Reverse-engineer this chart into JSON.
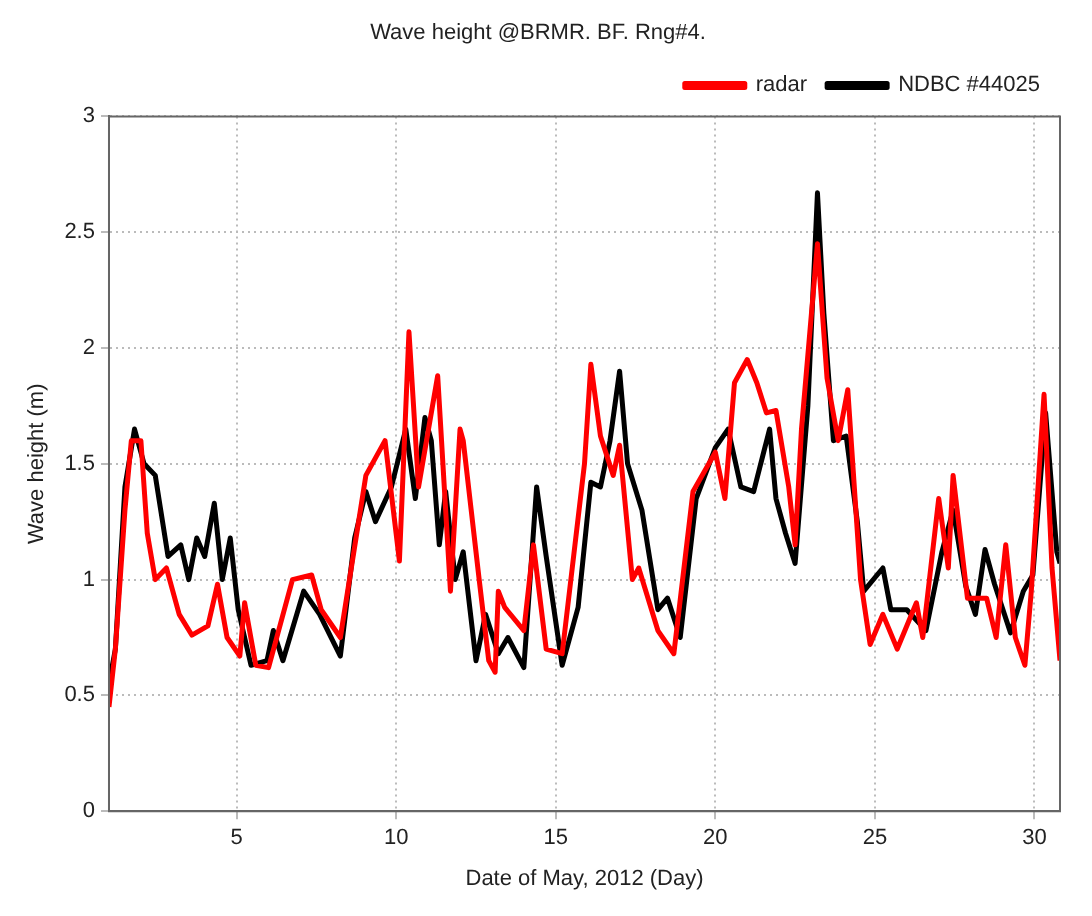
{
  "chart_data": {
    "type": "line",
    "title": "Wave height @BRMR. BF. Rng#4.",
    "xlabel": "Date of May, 2012 (Day)",
    "ylabel": "Wave height (m)",
    "xlim": [
      1,
      30.8
    ],
    "ylim": [
      0,
      3
    ],
    "xticks": [
      5,
      10,
      15,
      20,
      25,
      30
    ],
    "yticks": [
      0,
      0.5,
      1,
      1.5,
      2,
      2.5,
      3
    ],
    "grid": true,
    "legend": "top right",
    "line_style": "solid",
    "marker": "none",
    "series": [
      {
        "name": "radar",
        "color": "#ff0000",
        "x": [
          1.0,
          1.2,
          1.5,
          1.7,
          2.0,
          2.2,
          2.45,
          2.8,
          3.2,
          3.6,
          4.1,
          4.4,
          4.7,
          5.1,
          5.25,
          5.6,
          6.0,
          6.75,
          7.35,
          7.65,
          8.25,
          9.05,
          9.65,
          10.1,
          10.4,
          10.7,
          11.3,
          11.7,
          12.0,
          12.1,
          12.6,
          12.9,
          13.1,
          13.2,
          13.4,
          14.0,
          14.3,
          14.7,
          15.2,
          15.9,
          16.1,
          16.4,
          16.8,
          17.0,
          17.4,
          17.6,
          18.2,
          18.7,
          19.3,
          20.0,
          20.3,
          20.6,
          21.0,
          21.3,
          21.6,
          21.9,
          22.3,
          22.5,
          22.7,
          23.2,
          23.5,
          23.85,
          24.15,
          24.55,
          24.85,
          25.25,
          25.7,
          26.3,
          26.5,
          27.0,
          27.3,
          27.45,
          27.9,
          28.5,
          28.8,
          29.1,
          29.4,
          29.7,
          29.9,
          30.3,
          30.55,
          30.8
        ],
        "values": [
          0.45,
          0.7,
          1.3,
          1.6,
          1.6,
          1.2,
          1.0,
          1.05,
          0.85,
          0.76,
          0.8,
          0.98,
          0.75,
          0.67,
          0.9,
          0.63,
          0.62,
          1.0,
          1.02,
          0.87,
          0.75,
          1.45,
          1.6,
          1.08,
          2.07,
          1.4,
          1.88,
          0.95,
          1.65,
          1.6,
          1.0,
          0.65,
          0.6,
          0.95,
          0.88,
          0.78,
          1.15,
          0.7,
          0.68,
          1.5,
          1.93,
          1.62,
          1.45,
          1.58,
          1.0,
          1.05,
          0.78,
          0.68,
          1.38,
          1.55,
          1.35,
          1.85,
          1.95,
          1.85,
          1.72,
          1.73,
          1.4,
          1.15,
          1.65,
          2.45,
          1.87,
          1.6,
          1.82,
          1.0,
          0.72,
          0.85,
          0.7,
          0.9,
          0.75,
          1.35,
          1.05,
          1.45,
          0.92,
          0.92,
          0.75,
          1.15,
          0.75,
          0.63,
          0.95,
          1.8,
          1.05,
          0.65
        ]
      },
      {
        "name": "NDBC #44025",
        "color": "#000000",
        "x": [
          1.0,
          1.2,
          1.5,
          1.8,
          2.1,
          2.45,
          2.85,
          3.25,
          3.5,
          3.75,
          4.0,
          4.3,
          4.55,
          4.8,
          5.05,
          5.45,
          5.95,
          6.15,
          6.45,
          7.1,
          7.6,
          8.25,
          8.7,
          9.05,
          9.35,
          9.85,
          10.3,
          10.6,
          10.9,
          11.1,
          11.35,
          11.55,
          11.85,
          12.1,
          12.5,
          12.8,
          13.2,
          13.5,
          14.0,
          14.4,
          14.7,
          15.2,
          15.7,
          16.1,
          16.4,
          16.7,
          17.0,
          17.25,
          17.7,
          18.2,
          18.5,
          18.9,
          19.4,
          20.0,
          20.4,
          20.8,
          21.2,
          21.7,
          21.9,
          22.2,
          22.5,
          22.9,
          23.2,
          23.4,
          23.7,
          24.1,
          24.45,
          24.65,
          25.25,
          25.5,
          26.0,
          26.6,
          27.1,
          27.45,
          27.85,
          28.15,
          28.45,
          28.75,
          29.25,
          29.65,
          29.95,
          30.35,
          30.7,
          30.8
        ],
        "values": [
          0.55,
          0.7,
          1.4,
          1.65,
          1.5,
          1.45,
          1.1,
          1.15,
          1.0,
          1.18,
          1.1,
          1.33,
          1.0,
          1.18,
          0.87,
          0.63,
          0.65,
          0.78,
          0.65,
          0.95,
          0.85,
          0.67,
          1.18,
          1.38,
          1.25,
          1.4,
          1.65,
          1.35,
          1.7,
          1.6,
          1.15,
          1.38,
          1.0,
          1.12,
          0.65,
          0.85,
          0.68,
          0.75,
          0.62,
          1.4,
          1.1,
          0.63,
          0.88,
          1.42,
          1.4,
          1.6,
          1.9,
          1.5,
          1.3,
          0.87,
          0.92,
          0.75,
          1.35,
          1.57,
          1.65,
          1.4,
          1.38,
          1.65,
          1.35,
          1.2,
          1.07,
          1.75,
          2.67,
          2.15,
          1.6,
          1.62,
          1.25,
          0.95,
          1.05,
          0.87,
          0.87,
          0.78,
          1.12,
          1.3,
          0.97,
          0.85,
          1.13,
          0.98,
          0.77,
          0.95,
          1.02,
          1.72,
          1.12,
          1.07
        ]
      }
    ]
  }
}
